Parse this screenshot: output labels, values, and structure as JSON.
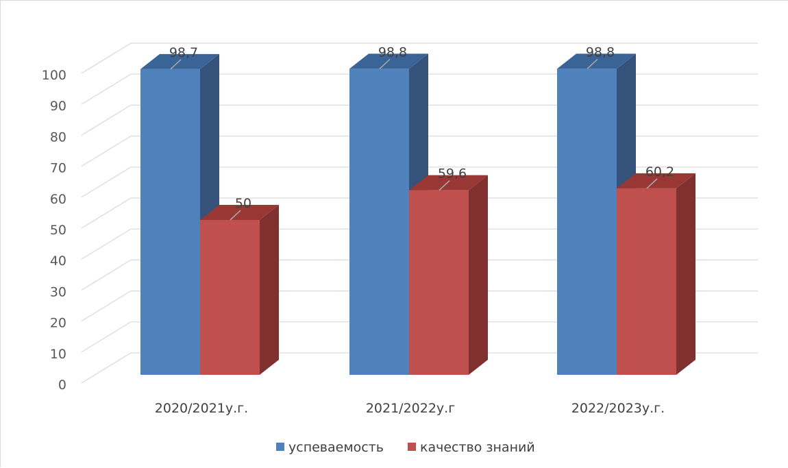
{
  "chart_data": {
    "type": "bar",
    "style": "3d-clustered-column",
    "categories": [
      "2020/2021у.г.",
      "2021/2022у.г",
      "2022/2023у.г."
    ],
    "series": [
      {
        "name": "успеваемость",
        "values": [
          98.7,
          98.8,
          98.8
        ],
        "labels": [
          "98,7",
          "98,8",
          "98,8"
        ],
        "color": "#4f81bd",
        "side_color": "#34527a",
        "top_color": "#3a6496"
      },
      {
        "name": "качество знаний",
        "values": [
          50,
          59.6,
          60.2
        ],
        "labels": [
          "50",
          "59,6",
          "60,2"
        ],
        "color": "#c0504d",
        "side_color": "#7f302f",
        "top_color": "#993734"
      }
    ],
    "y_ticks": [
      "0",
      "10",
      "20",
      "30",
      "40",
      "50",
      "60",
      "70",
      "80",
      "90",
      "100"
    ],
    "ylim": [
      0,
      100
    ],
    "grid": true,
    "legend_position": "bottom",
    "title": "",
    "xlabel": "",
    "ylabel": ""
  }
}
